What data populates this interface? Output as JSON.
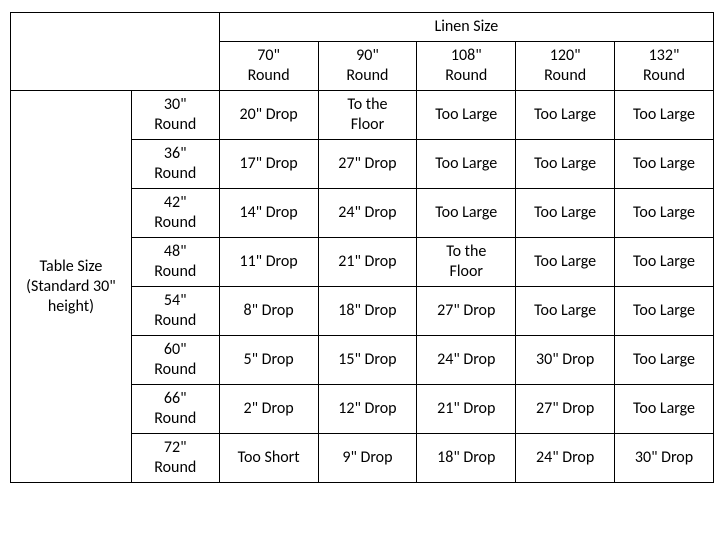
{
  "type": "table",
  "background_color": "#ffffff",
  "border_color": "#000000",
  "text_color": "#000000",
  "font_family": "Calibri",
  "font_size_pt": 12,
  "header": {
    "col_group_label": "Linen Size",
    "row_group_label_line1": "Table Size",
    "row_group_label_line2": "(Standard 30\"",
    "row_group_label_line3": "height)"
  },
  "linen_sizes": [
    {
      "l1": "70\"",
      "l2": "Round"
    },
    {
      "l1": "90\"",
      "l2": "Round"
    },
    {
      "l1": "108\"",
      "l2": "Round"
    },
    {
      "l1": "120\"",
      "l2": "Round"
    },
    {
      "l1": "132\"",
      "l2": "Round"
    }
  ],
  "table_sizes": [
    {
      "l1": "30\"",
      "l2": "Round"
    },
    {
      "l1": "36\"",
      "l2": "Round"
    },
    {
      "l1": "42\"",
      "l2": "Round"
    },
    {
      "l1": "48\"",
      "l2": "Round"
    },
    {
      "l1": "54\"",
      "l2": "Round"
    },
    {
      "l1": "60\"",
      "l2": "Round"
    },
    {
      "l1": "66\"",
      "l2": "Round"
    },
    {
      "l1": "72\"",
      "l2": "Round"
    }
  ],
  "cells": [
    [
      "20\" Drop",
      "To the Floor",
      "Too Large",
      "Too Large",
      "Too Large"
    ],
    [
      "17\" Drop",
      "27\" Drop",
      "Too Large",
      "Too Large",
      "Too Large"
    ],
    [
      "14\" Drop",
      "24\" Drop",
      "Too Large",
      "Too Large",
      "Too Large"
    ],
    [
      "11\" Drop",
      "21\" Drop",
      "To the Floor",
      "Too Large",
      "Too Large"
    ],
    [
      "8\" Drop",
      "18\" Drop",
      "27\" Drop",
      "Too Large",
      "Too Large"
    ],
    [
      "5\" Drop",
      "15\" Drop",
      "24\" Drop",
      "30\" Drop",
      "Too Large"
    ],
    [
      "2\" Drop",
      "12\" Drop",
      "21\" Drop",
      "27\" Drop",
      "Too Large"
    ],
    [
      "Too Short",
      "9\" Drop",
      "18\" Drop",
      "24\" Drop",
      "30\" Drop"
    ]
  ],
  "two_line_cells": {
    "0,1": [
      "To the",
      "Floor"
    ],
    "3,2": [
      "To the",
      "Floor"
    ]
  }
}
